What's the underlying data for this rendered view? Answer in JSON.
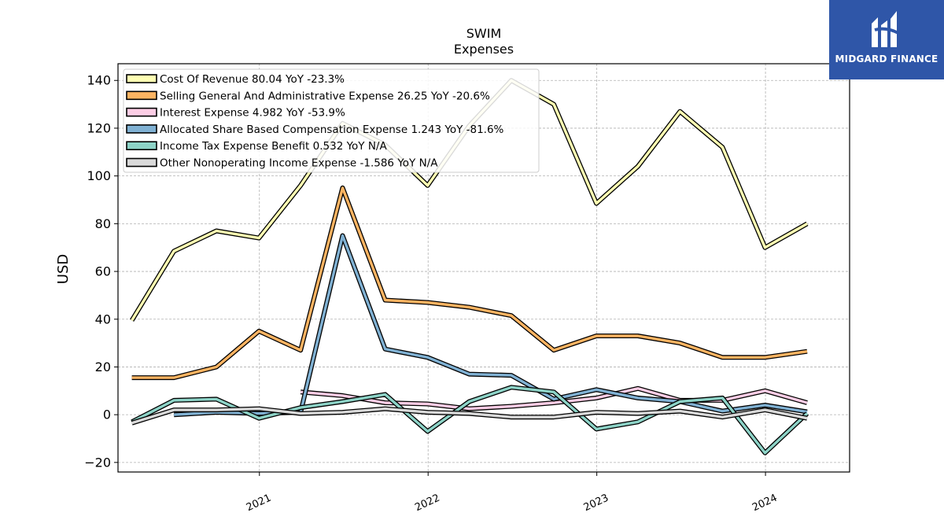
{
  "brand": {
    "name": "MIDGARD FINANCE",
    "bg_color": "#2f56a8"
  },
  "chart_data": {
    "type": "line",
    "title": "SWIM",
    "subtitle": "Expenses",
    "xlabel": "",
    "ylabel": "USD",
    "ylim": [
      -24,
      147
    ],
    "xlim": [
      "2020-03-01",
      "2024-07-01"
    ],
    "y_ticks": [
      -20,
      0,
      20,
      40,
      60,
      80,
      100,
      120,
      140
    ],
    "y_tick_labels": [
      "−20",
      "0",
      "20",
      "40",
      "60",
      "80",
      "100",
      "120",
      "140"
    ],
    "x_ticks": [
      "2021-01-01",
      "2022-01-01",
      "2023-01-01",
      "2024-01-01"
    ],
    "x_tick_labels": [
      "2021",
      "2022",
      "2023",
      "2024"
    ],
    "grid": true,
    "legend_position": "top-left",
    "x": [
      "2020-03-31",
      "2020-06-30",
      "2020-09-30",
      "2020-12-31",
      "2021-03-31",
      "2021-06-30",
      "2021-09-30",
      "2021-12-31",
      "2022-03-31",
      "2022-06-30",
      "2022-09-30",
      "2022-12-31",
      "2023-03-31",
      "2023-06-30",
      "2023-09-30",
      "2023-12-31",
      "2024-03-31"
    ],
    "series": [
      {
        "name": "Cost Of Revenue",
        "legend_label": "Cost Of Revenue  80.04 YoY -23.3%",
        "color": "#ffffb3",
        "values": [
          39.5,
          68.5,
          77,
          74,
          96,
          122,
          113,
          96,
          121,
          140,
          130,
          88.5,
          104,
          127,
          112,
          70,
          80
        ]
      },
      {
        "name": "Selling General And Administrative Expense",
        "legend_label": "Selling General And Administrative Expense  26.25 YoY -20.6%",
        "color": "#fdb462",
        "values": [
          15.5,
          15.5,
          20,
          35,
          27,
          95,
          48,
          47,
          45,
          41.5,
          27,
          33,
          33,
          30,
          24,
          24,
          26.5
        ]
      },
      {
        "name": "Interest Expense",
        "legend_label": "Interest Expense  4.982 YoY -53.9%",
        "color": "#fccde5",
        "values": [
          null,
          null,
          null,
          null,
          9.5,
          8,
          5,
          4.5,
          2.5,
          3.5,
          5,
          7,
          11,
          6,
          6,
          10,
          5
        ]
      },
      {
        "name": "Allocated Share Based Compensation Expense",
        "legend_label": "Allocated Share Based Compensation Expense  1.243 YoY -81.6%",
        "color": "#80b1d3",
        "values": [
          null,
          0,
          1,
          0.5,
          1,
          75,
          27.5,
          24,
          17,
          16.5,
          6.5,
          10.5,
          7,
          5.5,
          1.5,
          4,
          1.2
        ]
      },
      {
        "name": "Income Tax Expense Benefit",
        "legend_label": "Income Tax Expense Benefit  0.532 YoY N/A",
        "color": "#8dd3c7",
        "values": [
          -3,
          6,
          6.5,
          -1.5,
          3,
          5.5,
          8.5,
          -7,
          5.5,
          11.5,
          9.5,
          -6,
          -3,
          5.5,
          7,
          -16,
          0.5
        ]
      },
      {
        "name": "Other Nonoperating Income Expense",
        "legend_label": "Other Nonoperating Income Expense  -1.586 YoY N/A",
        "color": "#d9d9d9",
        "values": [
          -3.5,
          2,
          2,
          2.5,
          0.5,
          1,
          2.5,
          1,
          0.5,
          -1,
          -1,
          1,
          0.5,
          1.5,
          -1,
          2,
          -1.5
        ]
      }
    ]
  }
}
